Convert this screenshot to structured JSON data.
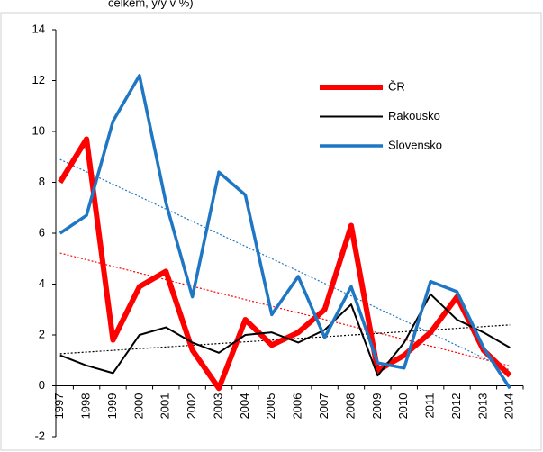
{
  "chart_data": {
    "type": "line",
    "title": "celkem, y/y v %)",
    "categories": [
      "1997",
      "1998",
      "1999",
      "2000",
      "2001",
      "2002",
      "2003",
      "2004",
      "2005",
      "2006",
      "2007",
      "2008",
      "2009",
      "2010",
      "2011",
      "2012",
      "2013",
      "2014"
    ],
    "series": [
      {
        "name": "ČR",
        "color": "#ff0000",
        "values": [
          8.0,
          9.7,
          1.8,
          3.9,
          4.5,
          1.4,
          -0.1,
          2.6,
          1.6,
          2.1,
          3.0,
          6.3,
          0.6,
          1.2,
          2.1,
          3.5,
          1.4,
          0.4
        ]
      },
      {
        "name": "Rakousko",
        "color": "#000000",
        "values": [
          1.2,
          0.8,
          0.5,
          2.0,
          2.3,
          1.7,
          1.3,
          2.0,
          2.1,
          1.7,
          2.2,
          3.2,
          0.4,
          1.7,
          3.6,
          2.6,
          2.1,
          1.5
        ]
      },
      {
        "name": "Slovensko",
        "color": "#1f77c4",
        "values": [
          6.0,
          6.7,
          10.4,
          12.2,
          7.2,
          3.5,
          8.4,
          7.5,
          2.8,
          4.3,
          1.9,
          3.9,
          0.9,
          0.7,
          4.1,
          3.7,
          1.5,
          -0.1
        ]
      }
    ],
    "ylim": [
      -2,
      14
    ],
    "yticks": [
      -2,
      0,
      2,
      4,
      6,
      8,
      10,
      12,
      14
    ],
    "trendline": true,
    "legend": "upper right"
  }
}
